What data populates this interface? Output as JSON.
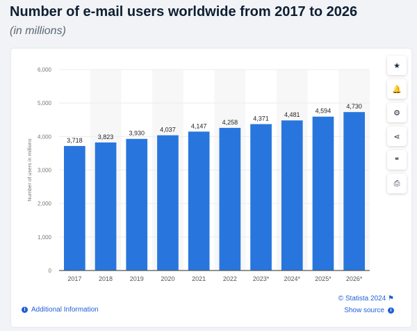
{
  "header": {
    "title": "Number of e-mail users worldwide from 2017 to 2026",
    "subtitle": "(in millions)"
  },
  "sidebar": [
    {
      "icon": "star-icon",
      "glyph": "★"
    },
    {
      "icon": "bell-icon",
      "glyph": "🔔"
    },
    {
      "icon": "gear-icon",
      "glyph": "⚙"
    },
    {
      "icon": "share-icon",
      "glyph": "⋖"
    },
    {
      "icon": "quote-icon",
      "glyph": "❝"
    },
    {
      "icon": "print-icon",
      "glyph": "⎙"
    }
  ],
  "footer": {
    "additional_info": "Additional Information",
    "copyright": "© Statista 2024",
    "show_source": "Show source"
  },
  "chart_data": {
    "type": "bar",
    "title": "Number of e-mail users worldwide from 2017 to 2026",
    "subtitle": "(in millions)",
    "xlabel": "",
    "ylabel": "Number of users in millions",
    "categories": [
      "2017",
      "2018",
      "2019",
      "2020",
      "2021",
      "2022",
      "2023*",
      "2024*",
      "2025*",
      "2026*"
    ],
    "values": [
      3718,
      3823,
      3930,
      4037,
      4147,
      4258,
      4371,
      4481,
      4594,
      4730
    ],
    "value_labels": [
      "3,718",
      "3,823",
      "3,930",
      "4,037",
      "4,147",
      "4,258",
      "4,371",
      "4,481",
      "4,594",
      "4,730"
    ],
    "ylim": [
      0,
      6000
    ],
    "yticks": [
      "0",
      "1,000",
      "2,000",
      "3,000",
      "4,000",
      "5,000",
      "6,000"
    ],
    "grid": true,
    "bar_color": "#2876dd"
  }
}
